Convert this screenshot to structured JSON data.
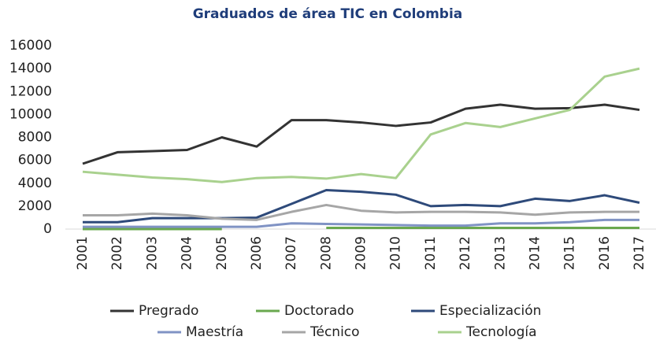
{
  "chart_data": {
    "type": "line",
    "title": "Graduados de área TIC en Colombia",
    "categories": [
      "2001",
      "2002",
      "2003",
      "2004",
      "2005",
      "2006",
      "2007",
      "2008",
      "2009",
      "2010",
      "2011",
      "2012",
      "2013",
      "2014",
      "2015",
      "2016",
      "2017"
    ],
    "ylim": [
      0,
      16000
    ],
    "yticks": [
      0,
      2000,
      4000,
      6000,
      8000,
      10000,
      12000,
      14000,
      16000
    ],
    "grid": false,
    "legend": "bottom",
    "series": [
      {
        "name": "Pregrado",
        "color": "#333333",
        "values": [
          5700,
          6700,
          6800,
          6900,
          8000,
          7200,
          9500,
          9500,
          9300,
          9000,
          9300,
          10500,
          10850,
          10500,
          10550,
          10850,
          10400
        ]
      },
      {
        "name": "Doctorado",
        "color": "#6aa84f",
        "values": [
          0,
          0,
          0,
          0,
          0,
          null,
          null,
          100,
          100,
          100,
          100,
          100,
          100,
          100,
          100,
          100,
          100
        ]
      },
      {
        "name": "Especialización",
        "color": "#2e4a7a",
        "values": [
          600,
          600,
          950,
          950,
          950,
          1000,
          2200,
          3400,
          3250,
          3000,
          2000,
          2100,
          2000,
          2650,
          2450,
          2950,
          2300
        ]
      },
      {
        "name": "Maestría",
        "color": "#8093c4",
        "values": [
          200,
          200,
          200,
          200,
          200,
          200,
          500,
          450,
          400,
          350,
          300,
          300,
          500,
          500,
          600,
          800,
          800
        ]
      },
      {
        "name": "Técnico",
        "color": "#a6a6a6",
        "values": [
          1200,
          1200,
          1350,
          1200,
          900,
          800,
          1500,
          2100,
          1600,
          1450,
          1500,
          1500,
          1450,
          1250,
          1450,
          1500,
          1500
        ]
      },
      {
        "name": "Tecnología",
        "color": "#a9d18e",
        "values": [
          5000,
          4750,
          4500,
          4350,
          4100,
          4450,
          4550,
          4400,
          4800,
          4450,
          8250,
          9250,
          8900,
          9650,
          10400,
          13300,
          14000
        ]
      }
    ]
  }
}
